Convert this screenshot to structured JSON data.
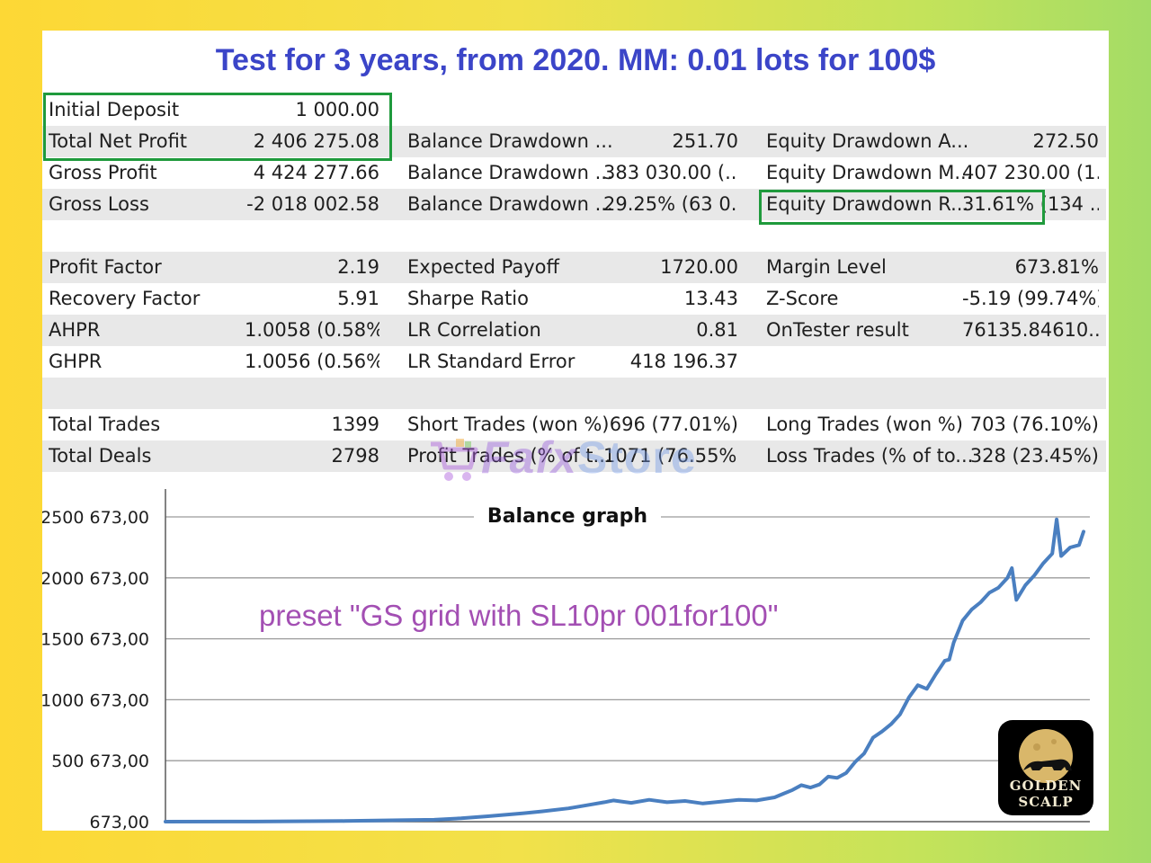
{
  "headline": "Test for 3 years, from 2020. MM: 0.01 lots for 100$",
  "stats": {
    "r0": {
      "c0l": "Initial Deposit",
      "c0v": "1 000.00"
    },
    "r1": {
      "c0l": "Total Net Profit",
      "c0v": "2 406 275.08",
      "c1l": "Balance Drawdown ...",
      "c1v": "251.70",
      "c2l": "Equity Drawdown A...",
      "c2v": "272.50"
    },
    "r2": {
      "c0l": "Gross Profit",
      "c0v": "4 424 277.66",
      "c1l": "Balance Drawdown ...",
      "c1v": "383 030.00 (...",
      "c2l": "Equity Drawdown M...",
      "c2v": "407 230.00 (1..."
    },
    "r3": {
      "c0l": "Gross Loss",
      "c0v": "-2 018 002.58",
      "c1l": "Balance Drawdown ...",
      "c1v": "29.25% (63 0...",
      "c2l": "Equity Drawdown R...",
      "c2v": "31.61% (134 ..."
    },
    "r5": {
      "c0l": "Profit Factor",
      "c0v": "2.19",
      "c1l": "Expected Payoff",
      "c1v": "1720.00",
      "c2l": "Margin Level",
      "c2v": "673.81%"
    },
    "r6": {
      "c0l": "Recovery Factor",
      "c0v": "5.91",
      "c1l": "Sharpe Ratio",
      "c1v": "13.43",
      "c2l": "Z-Score",
      "c2v": "-5.19 (99.74%)"
    },
    "r7": {
      "c0l": "AHPR",
      "c0v": "1.0058 (0.58%)",
      "c1l": "LR Correlation",
      "c1v": "0.81",
      "c2l": "OnTester result",
      "c2v": "76135.84610..."
    },
    "r8": {
      "c0l": "GHPR",
      "c0v": "1.0056 (0.56%)",
      "c1l": "LR Standard Error",
      "c1v": "418 196.37"
    },
    "r10": {
      "c0l": "Total Trades",
      "c0v": "1399",
      "c1l": "Short Trades (won %)",
      "c1v": "696 (77.01%)",
      "c2l": "Long Trades (won %)",
      "c2v": "703 (76.10%)"
    },
    "r11": {
      "c0l": "Total Deals",
      "c0v": "2798",
      "c1l": "Profit Trades (% of t...",
      "c1v": "1071 (76.55%)",
      "c2l": "Loss Trades (% of to...",
      "c2v": "328 (23.45%)"
    }
  },
  "highlight_color": "#1f9a3c",
  "watermark": {
    "part1": "Fafx",
    "part2": "Store"
  },
  "logo": {
    "line1": "GOLDEN",
    "line2": "SCALP"
  },
  "annotation": "preset \"GS grid with SL10pr 001for100\"",
  "chart_data": {
    "type": "line",
    "title": "Balance graph",
    "ytick_labels": [
      "673,00",
      "500 673,00",
      "1000 673,00",
      "1500 673,00",
      "2000 673,00",
      "2500 673,00"
    ],
    "ytick_values": [
      673,
      500673,
      1000673,
      1500673,
      2000673,
      2500673
    ],
    "ylim": [
      673,
      2500673
    ],
    "xlim": [
      0,
      1
    ],
    "grid": true,
    "line_color": "#4a7fc0",
    "series": [
      {
        "x": [
          0.0,
          0.1,
          0.2,
          0.27,
          0.3,
          0.33,
          0.36,
          0.4,
          0.42,
          0.45,
          0.47,
          0.49,
          0.5,
          0.52,
          0.54,
          0.56,
          0.58,
          0.6,
          0.62,
          0.64,
          0.66,
          0.68,
          0.69,
          0.7,
          0.71,
          0.72,
          0.73,
          0.74,
          0.75,
          0.76,
          0.77,
          0.78,
          0.79,
          0.8,
          0.81,
          0.82,
          0.83,
          0.84,
          0.85,
          0.86,
          0.87,
          0.875,
          0.88,
          0.89,
          0.9,
          0.91,
          0.92,
          0.93,
          0.94,
          0.945,
          0.95,
          0.96,
          0.97,
          0.98,
          0.99,
          0.995,
          1.0,
          1.01,
          1.02,
          1.025
        ],
        "y": [
          673,
          1500,
          6000,
          13000,
          16000,
          28000,
          45000,
          70000,
          85000,
          110000,
          135000,
          160000,
          175000,
          155000,
          180000,
          160000,
          170000,
          150000,
          165000,
          180000,
          175000,
          200000,
          230000,
          260000,
          300000,
          280000,
          305000,
          370000,
          360000,
          400000,
          490000,
          560000,
          690000,
          740000,
          800000,
          880000,
          1020000,
          1120000,
          1090000,
          1210000,
          1320000,
          1330000,
          1470000,
          1650000,
          1740000,
          1800000,
          1880000,
          1920000,
          2000000,
          2080000,
          1820000,
          1940000,
          2020000,
          2120000,
          2200000,
          2480000,
          2180000,
          2250000,
          2270000,
          2380000
        ]
      }
    ]
  }
}
